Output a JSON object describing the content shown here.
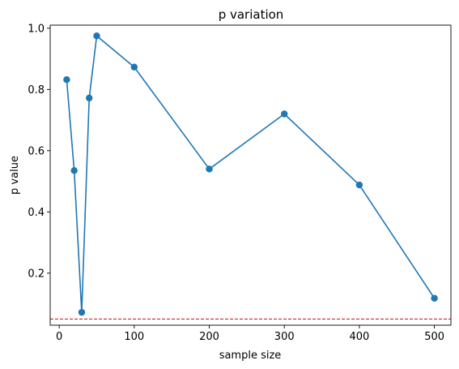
{
  "chart_data": {
    "type": "line",
    "title": "p variation",
    "xlabel": "sample size",
    "ylabel": "p value",
    "xlim": [
      -12,
      522
    ],
    "ylim": [
      0.03,
      1.01
    ],
    "xticks": [
      0,
      100,
      200,
      300,
      400,
      500
    ],
    "yticks": [
      0.2,
      0.4,
      0.6,
      0.8,
      1.0
    ],
    "ytick_labels": [
      "0.2",
      "0.4",
      "0.6",
      "0.8",
      "1.0"
    ],
    "grid": false,
    "series": [
      {
        "color": "#1f77b4",
        "marker": "circle",
        "x": [
          10,
          20,
          30,
          40,
          50,
          100,
          200,
          300,
          400,
          500
        ],
        "y": [
          0.832,
          0.535,
          0.072,
          0.772,
          0.975,
          0.873,
          0.54,
          0.72,
          0.488,
          0.118
        ]
      }
    ],
    "reference_line": {
      "orientation": "horizontal",
      "y": 0.05,
      "color": "#d62728",
      "style": "dashed"
    }
  }
}
